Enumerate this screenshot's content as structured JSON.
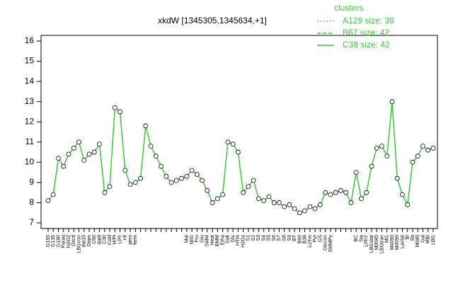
{
  "chart_data": {
    "type": "line",
    "title": "xkdW [1345305,1345634,+1]",
    "categories": [
      "G150",
      "G135",
      "G180",
      "Paraq",
      "H2O2",
      "Oxctl",
      "LBGnon",
      "dat15",
      "Diam",
      "C60",
      "dat8",
      "C30",
      "Cold",
      "H/Pt",
      "LPh",
      "nit",
      "aero",
      "ferm",
      null,
      null,
      null,
      null,
      null,
      null,
      null,
      null,
      null,
      "Mal",
      "M/G",
      "Fru",
      "Glu",
      "SMM",
      "Heat",
      "BMM",
      "Etha",
      "Salt",
      "Gly",
      "HTm",
      "H2Os",
      "S1",
      "S2",
      "S3",
      "S4",
      "S5",
      "S6",
      "S7",
      "S8",
      "S9",
      "BT",
      "B60",
      "B36",
      "LoTm",
      "Pyr",
      "GS",
      "Glucon",
      "SMMPy",
      null,
      null,
      null,
      null,
      "BC",
      "Sw",
      "LPhT",
      "LBGstat",
      "M0045",
      "LBGtran",
      "MG",
      "M4090",
      "M0090",
      "Lactat",
      "BI",
      "Sb",
      "M045",
      "Gal",
      "MBI",
      "LBG"
    ],
    "series": [
      {
        "name": "C38 size: 42",
        "color": "#33cc33",
        "values": [
          8.1,
          8.4,
          10.2,
          9.8,
          10.4,
          10.7,
          11.0,
          10.1,
          10.4,
          10.5,
          10.9,
          8.5,
          8.8,
          12.7,
          12.5,
          9.6,
          8.9,
          9.0,
          9.2,
          11.8,
          10.8,
          10.3,
          9.8,
          9.3,
          9.0,
          9.1,
          9.2,
          9.3,
          9.6,
          9.4,
          9.1,
          8.6,
          8.0,
          8.2,
          8.4,
          11.0,
          10.9,
          10.5,
          8.5,
          8.8,
          9.1,
          8.2,
          8.1,
          8.3,
          8.0,
          8.0,
          7.8,
          7.9,
          7.7,
          7.5,
          7.6,
          7.8,
          7.7,
          7.9,
          8.5,
          8.4,
          8.5,
          8.6,
          8.5,
          8.0,
          9.5,
          8.2,
          8.5,
          9.8,
          10.7,
          10.8,
          10.3,
          13.0,
          9.2,
          8.4,
          7.9,
          10.0,
          10.3,
          10.8,
          10.6,
          10.7
        ]
      }
    ],
    "legend": {
      "title": "clusters",
      "entries": [
        {
          "label": "A129 size: 38",
          "dash": "dotted"
        },
        {
          "label": "B67 size: 42",
          "dash": "dashed"
        },
        {
          "label": "C38 size: 42",
          "dash": "solid"
        }
      ]
    },
    "ylim": [
      7,
      16
    ],
    "yticks": [
      7,
      8,
      9,
      10,
      11,
      12,
      13,
      14,
      15,
      16
    ]
  }
}
